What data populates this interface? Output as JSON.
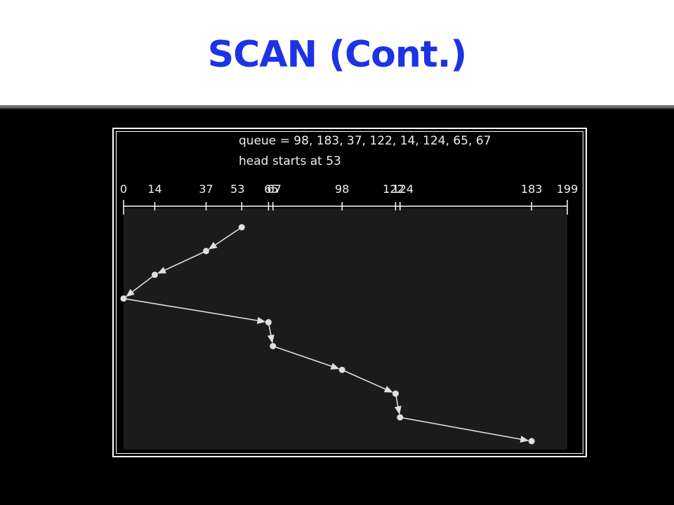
{
  "slide": {
    "title": "SCAN (Cont.)",
    "title_color": "#1c33e6",
    "background": "#000000"
  },
  "figure": {
    "queue_text": "queue = 98, 183, 37, 122, 14, 124, 65, 67",
    "head_text": "head starts at 53",
    "cylinder_range": [
      0,
      199
    ],
    "tick_values": [
      0,
      14,
      37,
      53,
      65,
      67,
      98,
      122,
      124,
      183,
      199
    ],
    "tick_labels": [
      "0",
      "14",
      "37",
      "53",
      "65",
      "67",
      "98",
      "122",
      "124",
      "183",
      "199"
    ],
    "service_order": [
      53,
      37,
      14,
      0,
      65,
      67,
      98,
      122,
      124,
      183
    ],
    "plot_background": "#1b1b1b",
    "line_color": "#e0e0e0"
  }
}
